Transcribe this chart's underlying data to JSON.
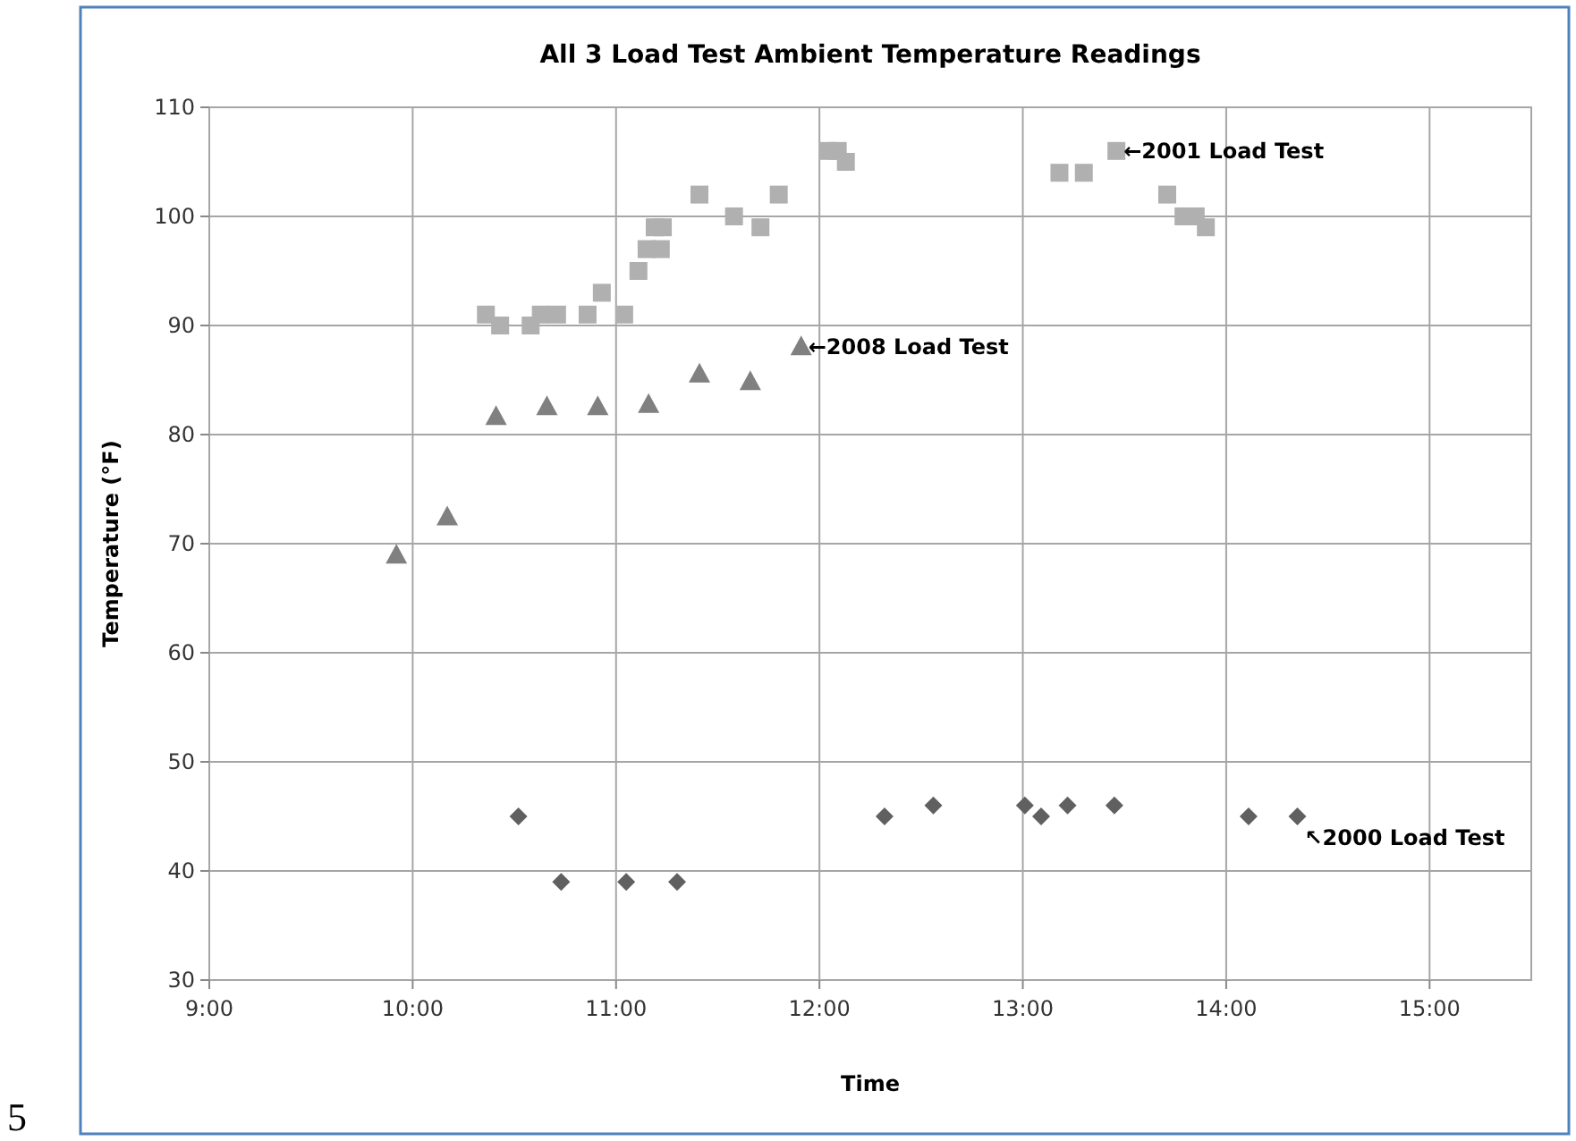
{
  "chart_data": {
    "type": "scatter",
    "title": "All 3 Load Test Ambient Temperature Readings",
    "xlabel": "Time",
    "ylabel": "Temperature (°F)",
    "xlim": [
      9,
      15.5
    ],
    "xticks": [
      {
        "value": 9,
        "label": "9:00"
      },
      {
        "value": 10,
        "label": "10:00"
      },
      {
        "value": 11,
        "label": "11:00"
      },
      {
        "value": 12,
        "label": "12:00"
      },
      {
        "value": 13,
        "label": "13:00"
      },
      {
        "value": 14,
        "label": "14:00"
      },
      {
        "value": 15,
        "label": "15:00"
      }
    ],
    "ylim": [
      30,
      110
    ],
    "yticks": [
      30,
      40,
      50,
      60,
      70,
      80,
      90,
      100,
      110
    ],
    "grid": true,
    "series": [
      {
        "color": "#b0b0b0",
        "marker": "square",
        "x": [
          10.36,
          10.43,
          10.58,
          10.63,
          10.71,
          10.86,
          10.93,
          11.04,
          11.11,
          11.15,
          11.22,
          11.19,
          11.23,
          11.41,
          11.58,
          11.71,
          11.8,
          12.04,
          12.09,
          12.13,
          13.18,
          13.3,
          13.46,
          13.71,
          13.79,
          13.85,
          13.9
        ],
        "values": [
          91,
          90,
          90,
          91,
          91,
          91,
          93,
          91,
          95,
          97,
          97,
          99,
          99,
          102,
          100,
          99,
          102,
          106,
          106,
          105,
          104,
          104,
          106,
          102,
          100,
          100,
          99
        ]
      },
      {
        "color": "#808080",
        "marker": "triangle",
        "x": [
          9.92,
          10.17,
          10.41,
          10.66,
          10.91,
          11.16,
          11.41,
          11.66,
          11.91
        ],
        "values": [
          69,
          72.5,
          81.7,
          82.6,
          82.6,
          82.8,
          85.6,
          84.9,
          88.1
        ]
      },
      {
        "color": "#606060",
        "marker": "diamond",
        "x": [
          10.52,
          10.73,
          11.05,
          11.3,
          12.32,
          12.56,
          13.01,
          13.09,
          13.22,
          13.45,
          14.11,
          14.35
        ],
        "values": [
          45,
          39,
          39,
          39,
          45,
          46,
          46,
          45,
          46,
          46,
          45,
          45
        ]
      }
    ],
    "annotations": [
      {
        "text": "←2001 Load Test",
        "x": 13.46,
        "y": 106
      },
      {
        "text": "←2008 Load Test",
        "x": 11.91,
        "y": 88.1
      },
      {
        "text": "↖2000 Load Test",
        "x": 14.35,
        "y": 45
      },
      "5"
    ]
  }
}
